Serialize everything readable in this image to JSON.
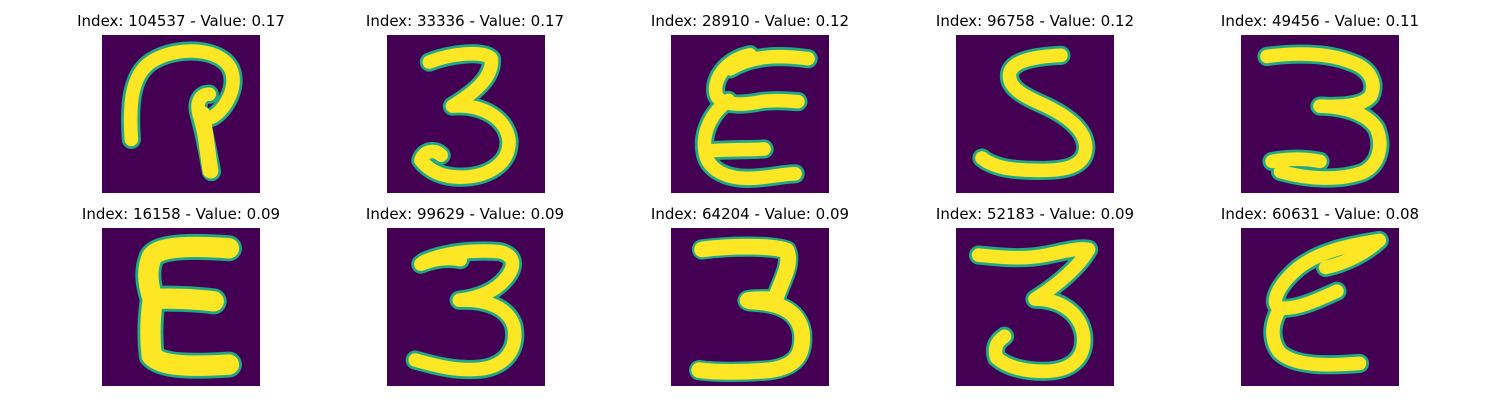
{
  "colors": {
    "background": "#440154",
    "stroke_core": "#fde725",
    "stroke_edge": "#22a884"
  },
  "panels": [
    {
      "title": "Index: 104537 - Value: 0.17",
      "glyph": "handwritten-2-like"
    },
    {
      "title": "Index: 33336 - Value: 0.17",
      "glyph": "handwritten-3"
    },
    {
      "title": "Index: 28910 - Value: 0.12",
      "glyph": "handwritten-epsilon"
    },
    {
      "title": "Index: 96758 - Value: 0.12",
      "glyph": "handwritten-5"
    },
    {
      "title": "Index: 49456 - Value: 0.11",
      "glyph": "handwritten-3"
    },
    {
      "title": "Index: 16158 - Value: 0.09",
      "glyph": "handwritten-epsilon"
    },
    {
      "title": "Index: 99629 - Value: 0.09",
      "glyph": "handwritten-3"
    },
    {
      "title": "Index: 64204 - Value: 0.09",
      "glyph": "handwritten-3"
    },
    {
      "title": "Index: 52183 - Value: 0.09",
      "glyph": "handwritten-3"
    },
    {
      "title": "Index: 60631 - Value: 0.08",
      "glyph": "handwritten-epsilon"
    }
  ]
}
